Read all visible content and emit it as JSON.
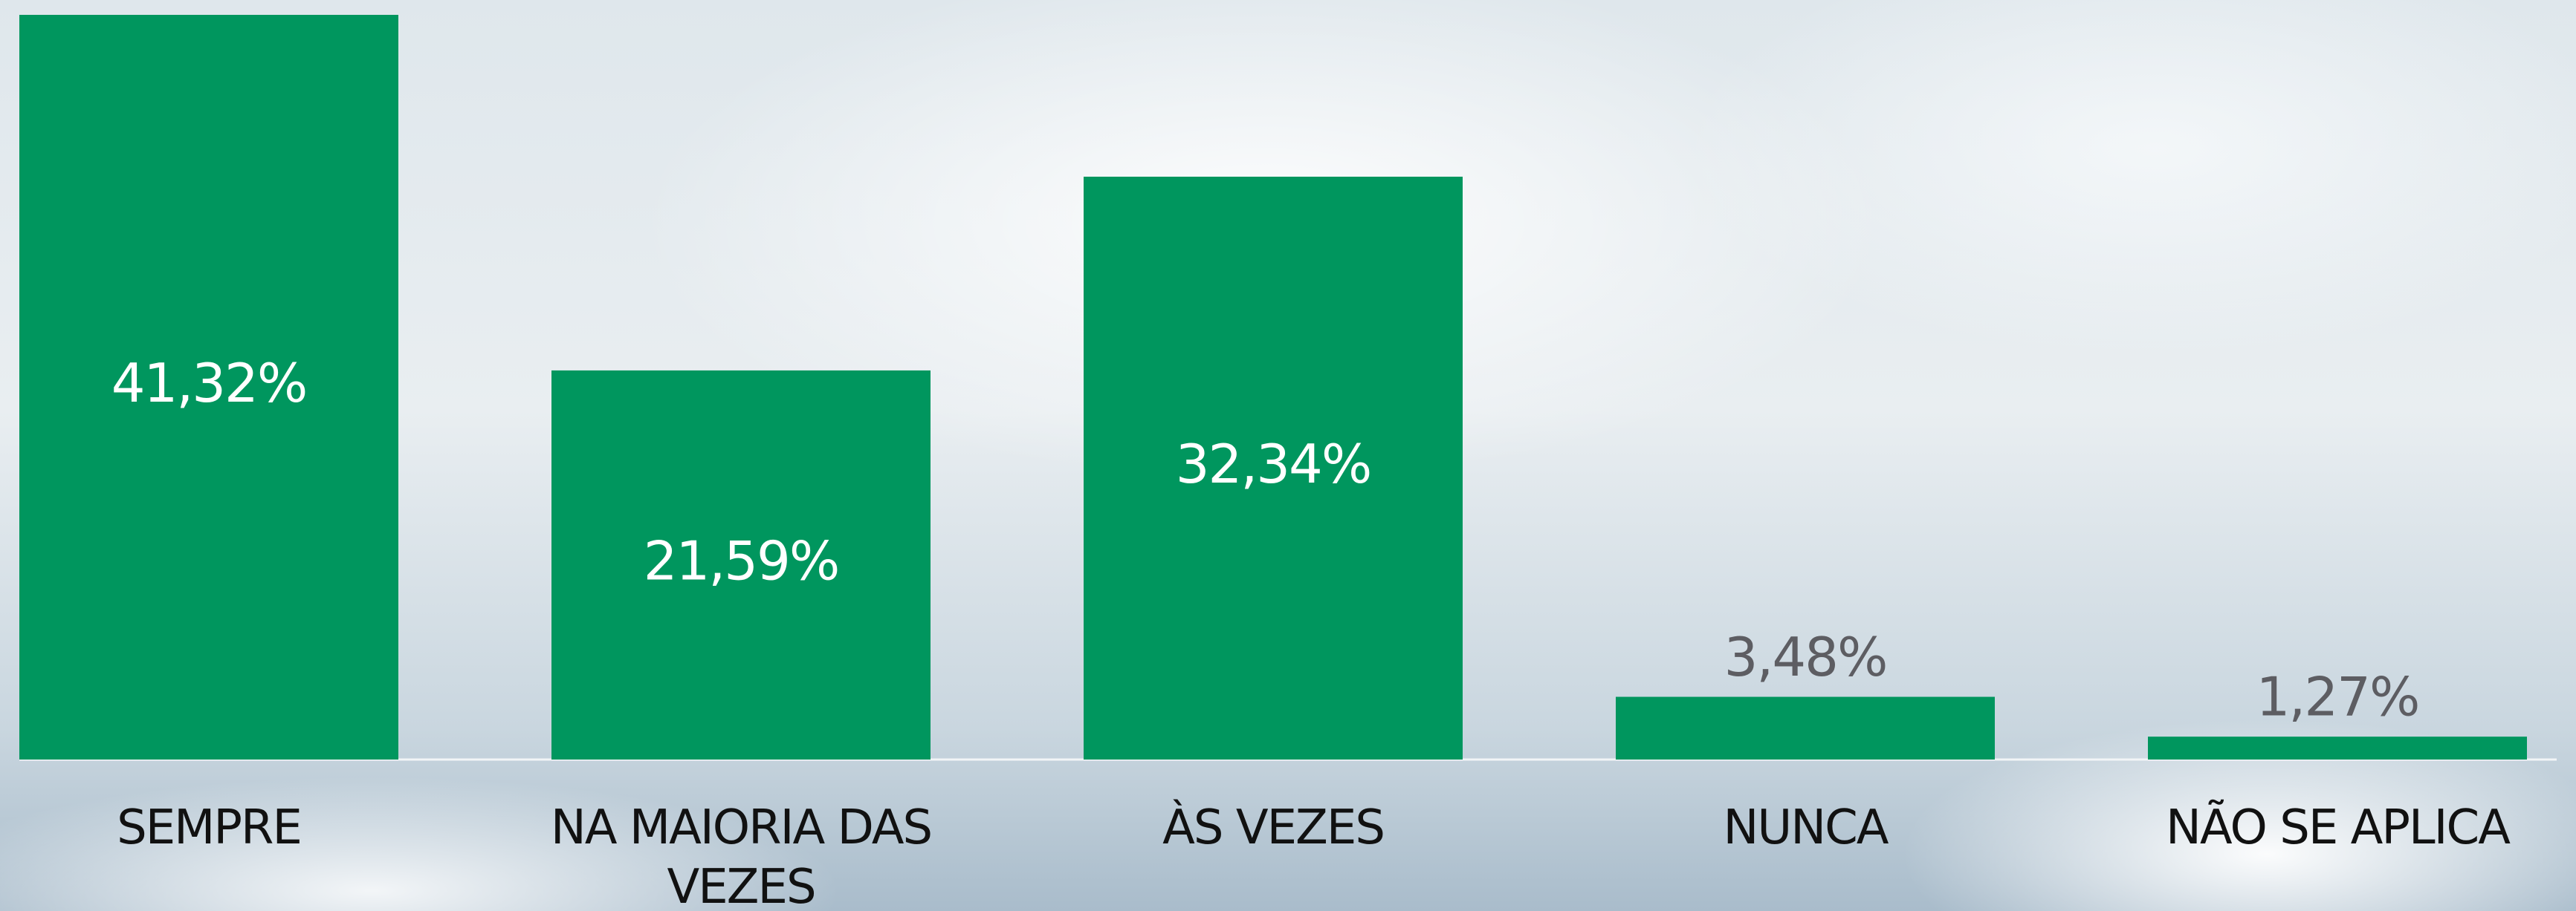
{
  "chart_data": {
    "type": "bar",
    "categories": [
      "SEMPRE",
      "NA MAIORIA DAS VEZES",
      "ÀS VEZES",
      "NUNCA",
      "NÃO SE APLICA"
    ],
    "values": [
      41.32,
      21.59,
      32.34,
      3.48,
      1.27
    ],
    "value_labels": [
      "41,32%",
      "21,59%",
      "32,34%",
      "3,48%",
      "1,27%"
    ],
    "color": "#00965e"
  }
}
